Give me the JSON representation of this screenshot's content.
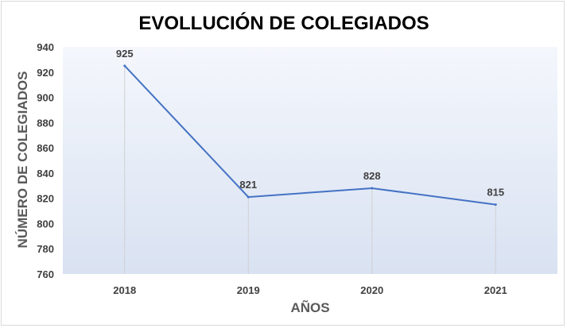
{
  "chart_data": {
    "type": "line",
    "title": "EVOLLUCIÓN  DE COLEGIADOS",
    "xlabel": "AÑOS",
    "ylabel": "NÚMERO DE COLEGIADOS",
    "categories": [
      "2018",
      "2019",
      "2020",
      "2021"
    ],
    "series": [
      {
        "values": [
          925,
          821,
          828,
          815
        ],
        "color": "#4472C4"
      }
    ],
    "data_labels": [
      "925",
      "821",
      "828",
      "815"
    ],
    "ylim": [
      760,
      940
    ],
    "yticks": [
      760,
      780,
      800,
      820,
      840,
      860,
      880,
      900,
      920,
      940
    ],
    "grid": false,
    "plot_background": "gradient #f4f7fc to #dae3f3"
  }
}
